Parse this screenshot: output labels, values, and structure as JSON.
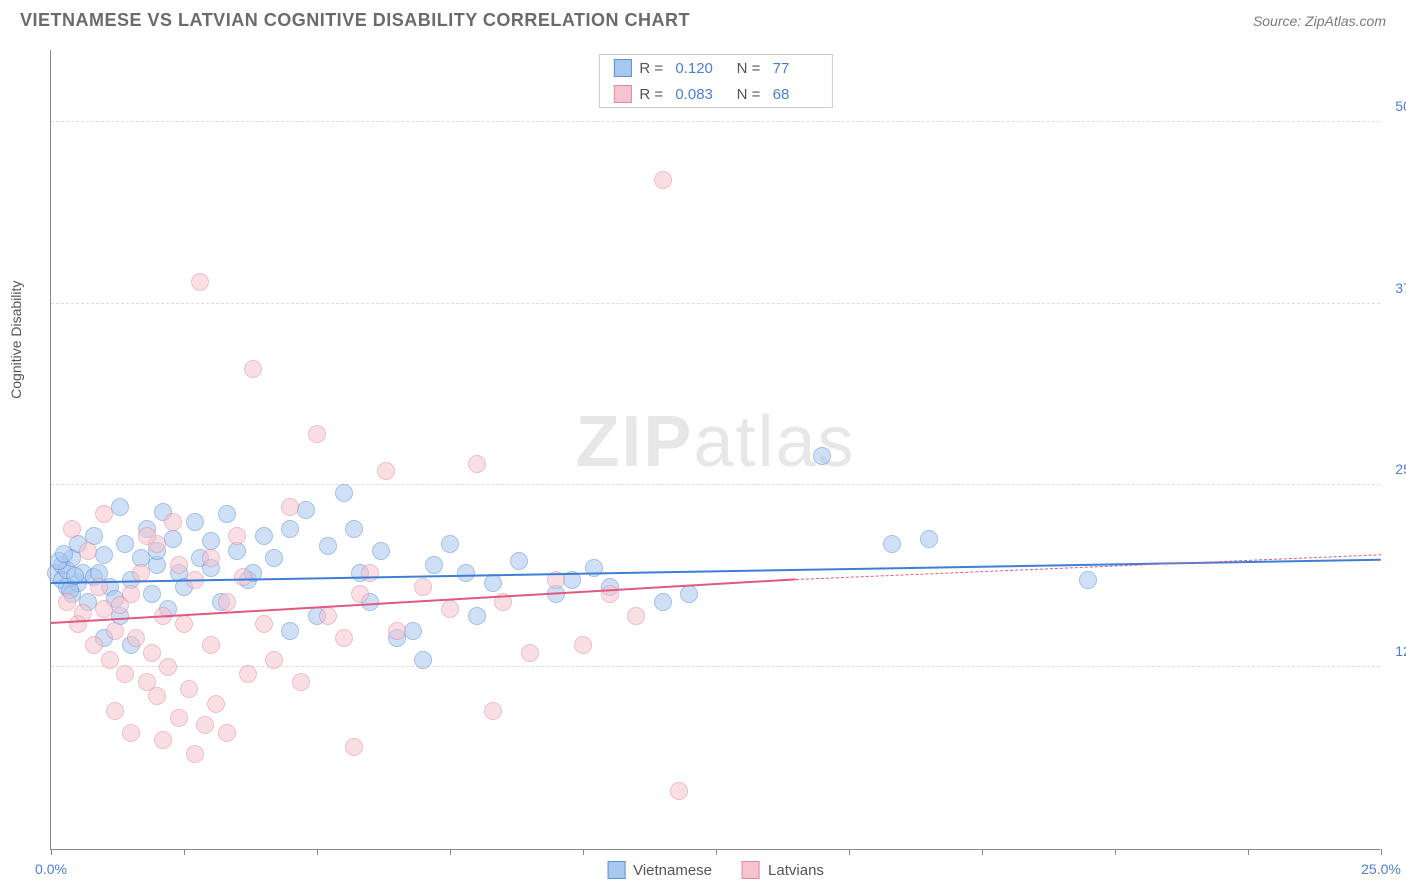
{
  "title": "VIETNAMESE VS LATVIAN COGNITIVE DISABILITY CORRELATION CHART",
  "source": "Source: ZipAtlas.com",
  "watermark_bold": "ZIP",
  "watermark_rest": "atlas",
  "chart": {
    "type": "scatter",
    "y_axis_label": "Cognitive Disability",
    "xlim": [
      0,
      25
    ],
    "ylim": [
      0,
      55
    ],
    "x_ticks": [
      0,
      2.5,
      5,
      7.5,
      10,
      12.5,
      15,
      17.5,
      20,
      22.5,
      25
    ],
    "x_tick_labels": {
      "0": "0.0%",
      "25": "25.0%"
    },
    "y_gridlines": [
      12.5,
      25,
      37.5,
      50
    ],
    "y_tick_labels": {
      "12.5": "12.5%",
      "25": "25.0%",
      "37.5": "37.5%",
      "50": "50.0%"
    },
    "background_color": "#ffffff",
    "grid_color": "#dddddd",
    "axis_color": "#888888",
    "marker_radius": 9,
    "marker_opacity": 0.55,
    "series": [
      {
        "name": "Vietnamese",
        "fill": "#a8c8f0",
        "stroke": "#5b8fd6",
        "line_color": "#3d7fd6",
        "R": "0.120",
        "N": "77",
        "trend": {
          "x1": 0,
          "y1": 18.2,
          "x2": 25,
          "y2": 19.8
        },
        "points": [
          [
            0.1,
            19
          ],
          [
            0.2,
            18.5
          ],
          [
            0.2,
            19.5
          ],
          [
            0.3,
            18
          ],
          [
            0.3,
            19.2
          ],
          [
            0.4,
            17.5
          ],
          [
            0.4,
            20
          ],
          [
            0.5,
            21
          ],
          [
            0.5,
            18.3
          ],
          [
            0.6,
            19
          ],
          [
            0.7,
            17
          ],
          [
            0.8,
            21.5
          ],
          [
            0.8,
            18.7
          ],
          [
            0.9,
            19
          ],
          [
            1.0,
            20.2
          ],
          [
            1.0,
            14.5
          ],
          [
            1.1,
            18
          ],
          [
            1.2,
            17.2
          ],
          [
            1.3,
            16
          ],
          [
            1.4,
            21
          ],
          [
            1.5,
            18.5
          ],
          [
            1.5,
            14
          ],
          [
            1.7,
            20
          ],
          [
            1.8,
            22
          ],
          [
            1.9,
            17.5
          ],
          [
            2.0,
            19.5
          ],
          [
            2.0,
            20.5
          ],
          [
            2.2,
            16.5
          ],
          [
            2.3,
            21.3
          ],
          [
            2.4,
            19
          ],
          [
            2.5,
            18
          ],
          [
            2.7,
            22.5
          ],
          [
            2.8,
            20
          ],
          [
            3.0,
            19.3
          ],
          [
            3.0,
            21.2
          ],
          [
            3.2,
            17
          ],
          [
            3.5,
            20.5
          ],
          [
            3.7,
            18.5
          ],
          [
            3.8,
            19
          ],
          [
            4.0,
            21.5
          ],
          [
            4.2,
            20
          ],
          [
            4.5,
            15
          ],
          [
            4.5,
            22
          ],
          [
            5.0,
            16
          ],
          [
            5.2,
            20.8
          ],
          [
            5.5,
            24.5
          ],
          [
            5.7,
            22
          ],
          [
            5.8,
            19
          ],
          [
            6.0,
            17
          ],
          [
            6.2,
            20.5
          ],
          [
            6.5,
            14.5
          ],
          [
            6.8,
            15
          ],
          [
            7.0,
            13
          ],
          [
            7.2,
            19.5
          ],
          [
            7.5,
            21
          ],
          [
            7.8,
            19
          ],
          [
            8.0,
            16
          ],
          [
            8.3,
            18.3
          ],
          [
            8.8,
            19.8
          ],
          [
            9.5,
            17.5
          ],
          [
            9.8,
            18.5
          ],
          [
            10.2,
            19.3
          ],
          [
            10.5,
            18
          ],
          [
            11.5,
            17
          ],
          [
            12.0,
            17.5
          ],
          [
            14.5,
            27
          ],
          [
            15.8,
            21
          ],
          [
            16.5,
            21.3
          ],
          [
            19.5,
            18.5
          ],
          [
            3.3,
            23
          ],
          [
            2.1,
            23.2
          ],
          [
            1.3,
            23.5
          ],
          [
            4.8,
            23.3
          ],
          [
            0.15,
            19.8
          ],
          [
            0.25,
            20.3
          ],
          [
            0.35,
            17.8
          ],
          [
            0.45,
            18.8
          ]
        ]
      },
      {
        "name": "Latvians",
        "fill": "#f5c4cf",
        "stroke": "#e38aa0",
        "line_color": "#e05a80",
        "R": "0.083",
        "N": "68",
        "trend": {
          "x1": 0,
          "y1": 15.5,
          "x2": 14,
          "y2": 18.5
        },
        "trend_dash": {
          "x1": 14,
          "y1": 18.5,
          "x2": 25,
          "y2": 20.2
        },
        "points": [
          [
            0.3,
            17
          ],
          [
            0.5,
            15.5
          ],
          [
            0.6,
            16.2
          ],
          [
            0.8,
            14
          ],
          [
            0.9,
            18
          ],
          [
            1.0,
            16.5
          ],
          [
            1.1,
            13
          ],
          [
            1.2,
            15
          ],
          [
            1.3,
            16.8
          ],
          [
            1.4,
            12
          ],
          [
            1.5,
            17.5
          ],
          [
            1.6,
            14.5
          ],
          [
            1.7,
            19
          ],
          [
            1.8,
            11.5
          ],
          [
            1.9,
            13.5
          ],
          [
            2.0,
            21
          ],
          [
            2.0,
            10.5
          ],
          [
            2.1,
            16
          ],
          [
            2.2,
            12.5
          ],
          [
            2.3,
            22.5
          ],
          [
            2.4,
            9
          ],
          [
            2.5,
            15.5
          ],
          [
            2.6,
            11
          ],
          [
            2.7,
            18.5
          ],
          [
            2.8,
            39
          ],
          [
            2.9,
            8.5
          ],
          [
            3.0,
            14
          ],
          [
            3.1,
            10
          ],
          [
            3.3,
            17
          ],
          [
            3.5,
            21.5
          ],
          [
            3.7,
            12
          ],
          [
            3.8,
            33
          ],
          [
            4.0,
            15.5
          ],
          [
            4.2,
            13
          ],
          [
            4.5,
            23.5
          ],
          [
            4.7,
            11.5
          ],
          [
            5.0,
            28.5
          ],
          [
            5.2,
            16
          ],
          [
            5.5,
            14.5
          ],
          [
            5.7,
            7
          ],
          [
            5.8,
            17.5
          ],
          [
            6.0,
            19
          ],
          [
            6.3,
            26
          ],
          [
            6.5,
            15
          ],
          [
            7.0,
            18
          ],
          [
            7.5,
            16.5
          ],
          [
            8.0,
            26.5
          ],
          [
            8.3,
            9.5
          ],
          [
            8.5,
            17
          ],
          [
            9.0,
            13.5
          ],
          [
            9.5,
            18.5
          ],
          [
            10.0,
            14
          ],
          [
            10.5,
            17.5
          ],
          [
            11.0,
            16
          ],
          [
            11.5,
            46
          ],
          [
            11.8,
            4
          ],
          [
            0.4,
            22
          ],
          [
            0.7,
            20.5
          ],
          [
            1.0,
            23
          ],
          [
            1.2,
            9.5
          ],
          [
            1.5,
            8
          ],
          [
            1.8,
            21.5
          ],
          [
            2.1,
            7.5
          ],
          [
            2.4,
            19.5
          ],
          [
            2.7,
            6.5
          ],
          [
            3.0,
            20
          ],
          [
            3.3,
            8
          ],
          [
            3.6,
            18.7
          ]
        ]
      }
    ],
    "legend_bottom": [
      {
        "label": "Vietnamese",
        "fill": "#a8c8f0",
        "stroke": "#5b8fd6"
      },
      {
        "label": "Latvians",
        "fill": "#f5c4cf",
        "stroke": "#e38aa0"
      }
    ]
  }
}
